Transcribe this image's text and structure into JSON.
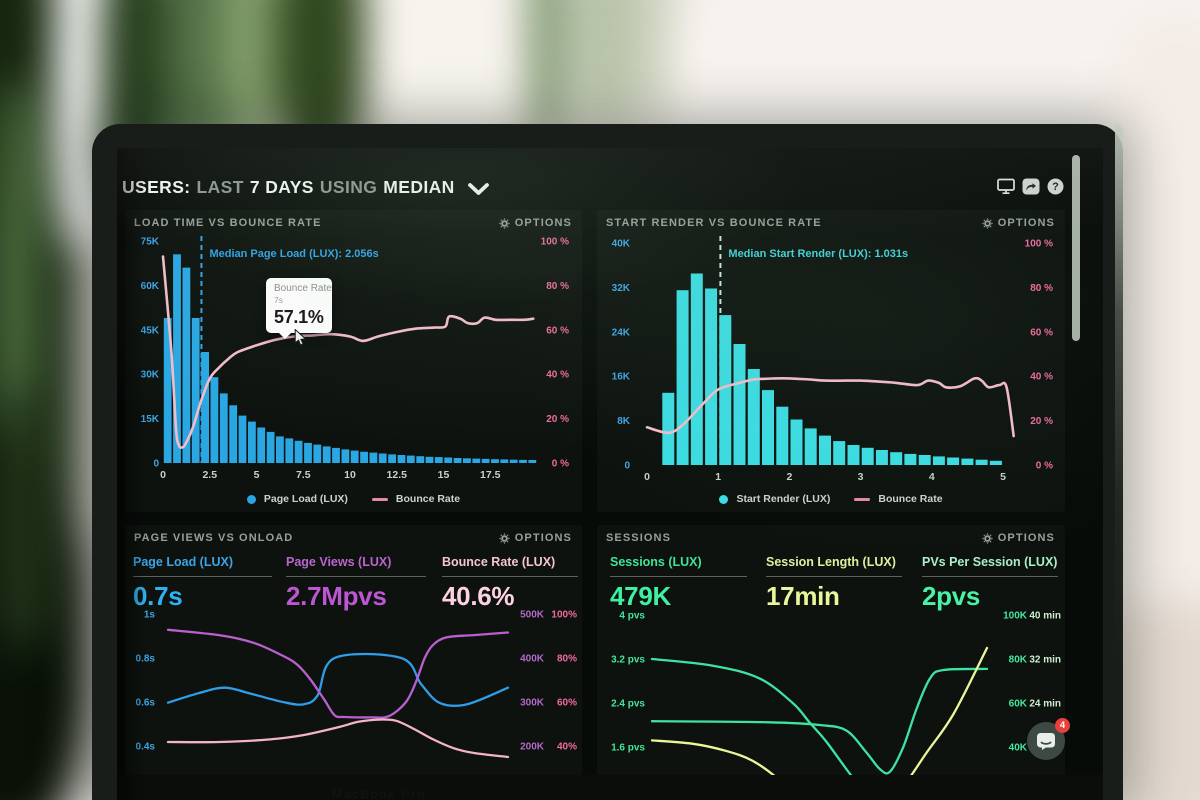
{
  "header": {
    "users": "USERS:",
    "last": "LAST",
    "days": "7 DAYS",
    "using": "USING",
    "median": "MEDIAN"
  },
  "panels": [
    {
      "title": "LOAD TIME VS BOUNCE RATE",
      "options": "OPTIONS",
      "median_label": "Median Page Load (LUX): 2.056s",
      "legend": [
        "Page Load (LUX)",
        "Bounce Rate"
      ],
      "tooltip": {
        "label": "Bounce Rate",
        "sub": "7s",
        "value": "57.1%"
      }
    },
    {
      "title": "START RENDER VS BOUNCE RATE",
      "options": "OPTIONS",
      "median_label": "Median Start Render (LUX): 1.031s",
      "legend": [
        "Start Render (LUX)",
        "Bounce Rate"
      ]
    },
    {
      "title": "PAGE VIEWS VS ONLOAD",
      "options": "OPTIONS",
      "metrics": [
        {
          "label": "Page Load (LUX)",
          "value": "0.7s"
        },
        {
          "label": "Page Views (LUX)",
          "value": "2.7Mpvs"
        },
        {
          "label": "Bounce Rate (LUX)",
          "value": "40.6%"
        }
      ]
    },
    {
      "title": "SESSIONS",
      "options": "OPTIONS",
      "metrics": [
        {
          "label": "Sessions (LUX)",
          "value": "479K"
        },
        {
          "label": "Session Length (LUX)",
          "value": "17min"
        },
        {
          "label": "PVs Per Session (LUX)",
          "value": "2pvs"
        }
      ]
    }
  ],
  "chat": {
    "badge": "4"
  },
  "colors": {
    "bar_blue": "#2aa7e3",
    "bar_cyan": "#3cdce2",
    "bounce_line": "#f3bcc9",
    "tick_blue": "#3da5e6",
    "tick_pink": "#ee6b9e",
    "median_blue": "#2fa3e8",
    "median_cyan": "#41d2d8",
    "dash_cyan": "#c9e6e8",
    "line_blue": "#2f9de8",
    "line_purple": "#b95fd0",
    "line_pink": "#f3b3c9",
    "line_teal": "#3fe3a1",
    "line_yellow": "#e9f79a",
    "tick_green": "#43e69e",
    "tick_purple": "#b468c8",
    "tick_mint": "#cdeecd",
    "xtick": "#c9d1c9"
  },
  "chart_data": [
    {
      "id": "load-time-vs-bounce-rate",
      "type": "bar+line",
      "x_bin_start": 0,
      "x_bin_width": 0.5,
      "x_max": 20,
      "y_max_k": 75,
      "bar_values_k": [
        49,
        70.5,
        66,
        49,
        37.5,
        29,
        23.5,
        19.5,
        16,
        14,
        12,
        10.5,
        9,
        8.3,
        7.5,
        6.8,
        6.2,
        5.6,
        5.1,
        4.6,
        4.2,
        3.8,
        3.5,
        3.2,
        2.9,
        2.7,
        2.5,
        2.3,
        2.1,
        2.0,
        1.85,
        1.7,
        1.6,
        1.5,
        1.4,
        1.3,
        1.2,
        1.1,
        1.05,
        1.0
      ],
      "bounce_line_pct": [
        [
          0,
          93
        ],
        [
          0.45,
          50
        ],
        [
          0.7,
          15
        ],
        [
          0.85,
          8
        ],
        [
          1.0,
          7
        ],
        [
          1.2,
          8.5
        ],
        [
          1.6,
          16
        ],
        [
          2,
          27
        ],
        [
          2.5,
          38
        ],
        [
          3,
          43
        ],
        [
          3.5,
          47
        ],
        [
          4,
          50
        ],
        [
          5,
          53
        ],
        [
          6,
          55.5
        ],
        [
          7,
          57
        ],
        [
          8,
          57.5
        ],
        [
          9,
          58
        ],
        [
          10,
          57
        ],
        [
          10.7,
          55
        ],
        [
          11.5,
          57
        ],
        [
          12.5,
          59
        ],
        [
          13.5,
          60.5
        ],
        [
          14.5,
          61
        ],
        [
          15.1,
          61.5
        ],
        [
          15.3,
          66
        ],
        [
          15.9,
          65
        ],
        [
          16.3,
          63
        ],
        [
          16.8,
          63
        ],
        [
          17.2,
          65.5
        ],
        [
          17.8,
          64.5
        ],
        [
          18.5,
          64.5
        ],
        [
          19.3,
          64.5
        ],
        [
          19.8,
          65
        ]
      ],
      "median_s": 2.056,
      "y_ticks_left": [
        "75K",
        "60K",
        "45K",
        "30K",
        "15K",
        "0"
      ],
      "y_ticks_right": [
        "100 %",
        "80 %",
        "60 %",
        "40 %",
        "20 %",
        "0 %"
      ],
      "x_ticks": [
        "0",
        "2.5",
        "5",
        "7.5",
        "10",
        "12.5",
        "15",
        "17.5"
      ],
      "x_tick_vals": [
        0,
        2.5,
        5,
        7.5,
        10,
        12.5,
        15,
        17.5
      ]
    },
    {
      "id": "start-render-vs-bounce-rate",
      "type": "bar+line",
      "x_bin_start": 0.2,
      "x_bin_width": 0.2,
      "x_max": 5,
      "y_max_k": 40,
      "bar_values_k": [
        13,
        31.5,
        34.5,
        31.8,
        27,
        21.8,
        17.3,
        13.5,
        10.5,
        8.2,
        6.6,
        5.3,
        4.3,
        3.6,
        3.1,
        2.7,
        2.3,
        2.0,
        1.8,
        1.55,
        1.35,
        1.15,
        0.95,
        0.75
      ],
      "bounce_line_pct": [
        [
          0,
          17
        ],
        [
          0.3,
          14.5
        ],
        [
          0.5,
          18
        ],
        [
          0.8,
          28
        ],
        [
          1.0,
          34
        ],
        [
          1.3,
          37
        ],
        [
          1.5,
          38.5
        ],
        [
          1.8,
          39
        ],
        [
          2.0,
          39
        ],
        [
          2.3,
          38.5
        ],
        [
          2.5,
          38
        ],
        [
          2.8,
          38
        ],
        [
          3.0,
          38
        ],
        [
          3.3,
          37.5
        ],
        [
          3.5,
          37
        ],
        [
          3.8,
          36
        ],
        [
          3.95,
          38
        ],
        [
          4.1,
          37
        ],
        [
          4.2,
          35
        ],
        [
          4.4,
          35.5
        ],
        [
          4.6,
          39
        ],
        [
          4.7,
          38
        ],
        [
          4.8,
          35
        ],
        [
          4.95,
          36
        ],
        [
          5.05,
          35
        ],
        [
          5.15,
          13
        ]
      ],
      "median_s": 1.031,
      "y_ticks_left": [
        "40K",
        "32K",
        "24K",
        "16K",
        "8K",
        "0"
      ],
      "y_ticks_right": [
        "100 %",
        "80 %",
        "60 %",
        "40 %",
        "20 %",
        "0 %"
      ],
      "x_ticks": [
        "0",
        "1",
        "2",
        "3",
        "4",
        "5"
      ],
      "x_tick_vals": [
        0,
        1,
        2,
        3,
        4,
        5
      ]
    },
    {
      "id": "page-views-vs-onload",
      "type": "line",
      "y_ticks_left": [
        "1s",
        "0.8s",
        "0.6s",
        "0.4s"
      ],
      "y_ticks_right_views": [
        "500K",
        "400K",
        "300K",
        "200K"
      ],
      "y_ticks_right_bounce": [
        "100%",
        "80%",
        "60%",
        "40%"
      ],
      "series": [
        {
          "name": "Page Load (LUX)",
          "scale": "seconds",
          "color_key": "line_blue",
          "points": [
            [
              0,
              0.597
            ],
            [
              0.09,
              0.64
            ],
            [
              0.167,
              0.665
            ],
            [
              0.25,
              0.635
            ],
            [
              0.343,
              0.598
            ],
            [
              0.4,
              0.59
            ],
            [
              0.44,
              0.63
            ],
            [
              0.49,
              0.8
            ],
            [
              0.686,
              0.8
            ],
            [
              0.745,
              0.68
            ],
            [
              0.8,
              0.595
            ],
            [
              0.88,
              0.59
            ],
            [
              1.0,
              0.665
            ]
          ]
        },
        {
          "name": "Page Views (LUX)",
          "scale": "views_k",
          "color_key": "line_purple",
          "points": [
            [
              0,
              464
            ],
            [
              0.15,
              452
            ],
            [
              0.25,
              435
            ],
            [
              0.33,
              408
            ],
            [
              0.38,
              385
            ],
            [
              0.42,
              350
            ],
            [
              0.46,
              305
            ],
            [
              0.49,
              270
            ],
            [
              0.52,
              266
            ],
            [
              0.6,
              265
            ],
            [
              0.65,
              268
            ],
            [
              0.7,
              300
            ],
            [
              0.73,
              347
            ],
            [
              0.755,
              400
            ],
            [
              0.78,
              430
            ],
            [
              0.82,
              447
            ],
            [
              0.9,
              452
            ],
            [
              1.0,
              458
            ]
          ]
        },
        {
          "name": "Bounce Rate (LUX)",
          "scale": "percent",
          "color_key": "line_pink",
          "points": [
            [
              0,
              41.8
            ],
            [
              0.15,
              41.8
            ],
            [
              0.3,
              43
            ],
            [
              0.4,
              45
            ],
            [
              0.5,
              48.5
            ],
            [
              0.56,
              51
            ],
            [
              0.62,
              52
            ],
            [
              0.67,
              51.5
            ],
            [
              0.72,
              48
            ],
            [
              0.78,
              43
            ],
            [
              0.84,
              39
            ],
            [
              0.9,
              36.8
            ],
            [
              1.0,
              35
            ]
          ]
        }
      ]
    },
    {
      "id": "sessions",
      "type": "line",
      "y_ticks_left": [
        "4 pvs",
        "3.2 pvs",
        "2.4 pvs",
        "1.6 pvs"
      ],
      "y_ticks_right_sessions": [
        "100K",
        "80K",
        "60K",
        "40K"
      ],
      "y_ticks_right_minutes": [
        "40 min",
        "32 min",
        "24 min"
      ],
      "series": [
        {
          "name": "Sessions (LUX)",
          "scale": "pvs",
          "color_key": "line_teal",
          "points": [
            [
              0,
              3.2
            ],
            [
              0.18,
              3.08
            ],
            [
              0.32,
              2.85
            ],
            [
              0.42,
              2.4
            ],
            [
              0.47,
              2.05
            ],
            [
              0.52,
              1.7
            ],
            [
              0.58,
              1.2
            ],
            [
              0.63,
              0.8
            ]
          ]
        },
        {
          "name": "PVs Per Session (LUX)",
          "scale": "pvs",
          "color_key": "line_teal",
          "points": [
            [
              0,
              2.07
            ],
            [
              0.35,
              2.05
            ],
            [
              0.5,
              2.0
            ],
            [
              0.58,
              1.9
            ],
            [
              0.64,
              1.5
            ],
            [
              0.68,
              1.2
            ],
            [
              0.71,
              1.15
            ],
            [
              0.75,
              1.6
            ],
            [
              0.79,
              2.3
            ],
            [
              0.83,
              2.85
            ],
            [
              0.87,
              3.0
            ],
            [
              1.0,
              3.02
            ]
          ]
        },
        {
          "name": "Session Length (LUX)",
          "scale": "minutes",
          "color_key": "line_yellow",
          "points": [
            [
              0,
              17.2
            ],
            [
              0.12,
              16.6
            ],
            [
              0.22,
              15.3
            ],
            [
              0.3,
              13.5
            ],
            [
              0.38,
              10
            ],
            [
              0.46,
              5
            ],
            [
              0.56,
              1
            ],
            [
              0.66,
              3
            ],
            [
              0.74,
              8
            ],
            [
              0.82,
              15
            ],
            [
              0.9,
              22
            ],
            [
              1.0,
              34
            ]
          ]
        }
      ]
    }
  ]
}
